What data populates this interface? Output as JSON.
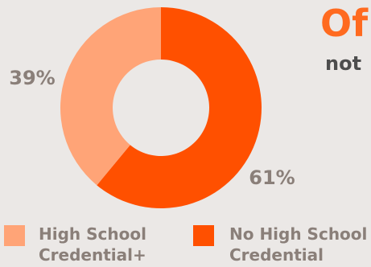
{
  "heading": {
    "title": "Of",
    "subtitle": "not"
  },
  "chart_data": {
    "type": "pie",
    "variant": "donut",
    "slices": [
      {
        "name": "High School Credential+",
        "value": 39,
        "label": "39%",
        "color": "#ffa477"
      },
      {
        "name": "No High School Credential",
        "value": 61,
        "label": "61%",
        "color": "#ff5000"
      }
    ],
    "legend": {
      "position": "bottom",
      "items": [
        {
          "lines": [
            "High School",
            "Credential+"
          ],
          "color": "#ffa477"
        },
        {
          "lines": [
            "No High School",
            "Credential"
          ],
          "color": "#ff5000"
        }
      ]
    }
  },
  "colors": {
    "background": "#ebe8e6",
    "accent": "#ff6a1f",
    "dark_text": "#4d4d4d",
    "data_label_text": "#8a7f79",
    "legend_text": "#8a7f79"
  }
}
